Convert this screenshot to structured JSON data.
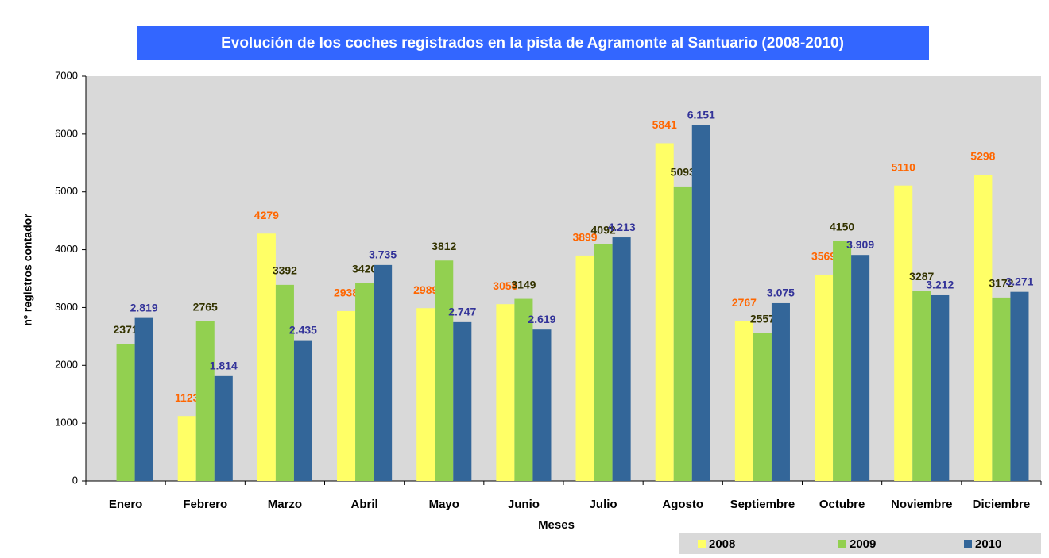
{
  "chart_data": {
    "type": "bar",
    "title": "Evolución de los coches registrados en la pista de Agramonte al Santuario (2008-2010)",
    "x_label": "Meses",
    "y_label": "nº registros contador",
    "categories": [
      "Enero",
      "Febrero",
      "Marzo",
      "Abril",
      "Mayo",
      "Junio",
      "Julio",
      "Agosto",
      "Septiembre",
      "Octubre",
      "Noviembre",
      "Diciembre"
    ],
    "series": [
      {
        "name": "2008",
        "color": "#ffff66",
        "label_color": "#ff6600",
        "values": [
          null,
          1123,
          4279,
          2938,
          2989,
          3058,
          3899,
          5841,
          2767,
          3569,
          5110,
          5298
        ]
      },
      {
        "name": "2009",
        "color": "#92d050",
        "label_color": "#333300",
        "values": [
          2371,
          2765,
          3392,
          3420,
          3812,
          3149,
          4092,
          5093,
          2557,
          4150,
          3287,
          3172
        ]
      },
      {
        "name": "2010",
        "color": "#336699",
        "label_color": "#333399",
        "values": [
          2819,
          1814,
          2435,
          3735,
          2747,
          2619,
          4213,
          6151,
          3075,
          3909,
          3212,
          3271
        ],
        "value_labels": [
          "2.819",
          "1.814",
          "2.435",
          "3.735",
          "2.747",
          "2.619",
          "4.213",
          "6.151",
          "3.075",
          "3.909",
          "3.212",
          "3.271"
        ]
      }
    ],
    "ylim": [
      0,
      7000
    ],
    "yticks": [
      0,
      1000,
      2000,
      3000,
      4000,
      5000,
      6000,
      7000
    ],
    "grid": false,
    "legend": "bottom-right"
  }
}
